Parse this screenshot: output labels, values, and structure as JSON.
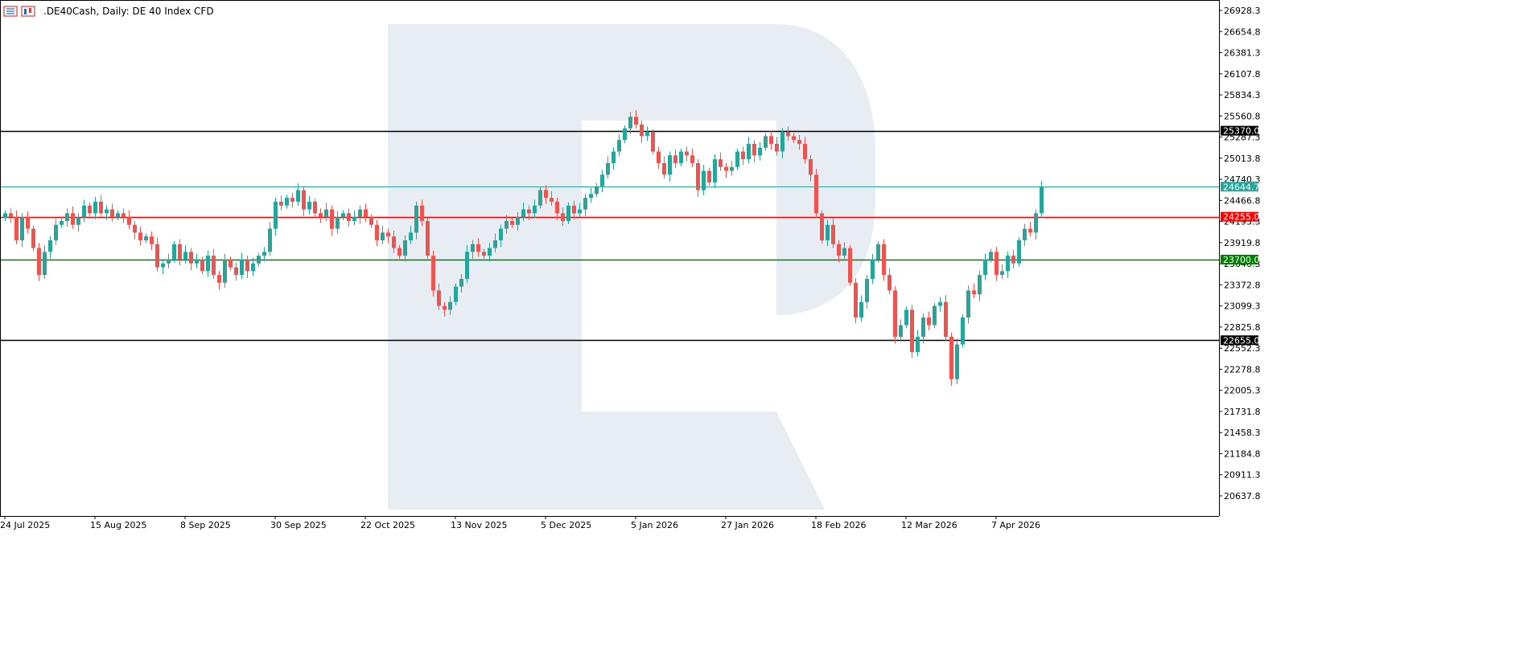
{
  "header": {
    "title": ".DE40Cash, Daily:  DE 40 Index CFD",
    "icons": [
      "indicator-list-icon",
      "chart-template-icon"
    ]
  },
  "watermark": {
    "icon": "brand-r-watermark-icon",
    "color": "#e8edf4"
  },
  "colors": {
    "bull": "#26a69a",
    "bear": "#ef5350",
    "resistance_line": "#000000",
    "key_level": "#ff0000",
    "support_level": "#008000",
    "price_line": "#26a69a",
    "axis": "#000000"
  },
  "chart_data": {
    "type": "candlestick",
    "title": ".DE40Cash, Daily:  DE 40 Index CFD",
    "ylim": [
      20500,
      27050
    ],
    "y_ticks": [
      "26928.3",
      "26654.8",
      "26381.3",
      "26107.8",
      "25834.3",
      "25560.8",
      "25287.3",
      "25013.8",
      "24740.3",
      "24466.8",
      "24193.3",
      "23919.8",
      "23646.3",
      "23372.8",
      "23099.3",
      "22825.8",
      "22552.3",
      "22278.8",
      "22005.3",
      "21731.8",
      "21458.3",
      "21184.8",
      "20911.3",
      "20637.8"
    ],
    "x_ticks": [
      {
        "label": "24 Jul 2025",
        "index": 0
      },
      {
        "label": "15 Aug 2025",
        "index": 16
      },
      {
        "label": "8 Sep 2025",
        "index": 32
      },
      {
        "label": "30 Sep 2025",
        "index": 48
      },
      {
        "label": "22 Oct 2025",
        "index": 64
      },
      {
        "label": "13 Nov 2025",
        "index": 80
      },
      {
        "label": "5 Dec 2025",
        "index": 96
      },
      {
        "label": "5 Jan 2026",
        "index": 112
      },
      {
        "label": "27 Jan 2026",
        "index": 128
      },
      {
        "label": "18 Feb 2026",
        "index": 144
      },
      {
        "label": "12 Mar 2026",
        "index": 160
      },
      {
        "label": "7 Apr 2026",
        "index": 176
      }
    ],
    "levels": [
      {
        "value": 25370.0,
        "label": "25370.0",
        "color": "#000000",
        "label_bg": "#000000",
        "label_fg": "#ffffff"
      },
      {
        "value": 24255.0,
        "label": "24255.0",
        "color": "#ff0000",
        "label_bg": "#ff0000",
        "label_fg": "#ffffff"
      },
      {
        "value": 23700.0,
        "label": "23700.0",
        "color": "#008000",
        "label_bg": "#008000",
        "label_fg": "#ffffff"
      },
      {
        "value": 22655.0,
        "label": "22655.0",
        "color": "#000000",
        "label_bg": "#000000",
        "label_fg": "#ffffff"
      },
      {
        "value": 24644.7,
        "label": "24644.7",
        "color": "#26a69a",
        "label_bg": "#26a69a",
        "label_fg": "#ffffff"
      }
    ],
    "closes": [
      24300,
      24250,
      23950,
      24250,
      24100,
      23850,
      23500,
      23800,
      23950,
      24150,
      24200,
      24300,
      24150,
      24250,
      24400,
      24300,
      24450,
      24300,
      24350,
      24250,
      24300,
      24250,
      24150,
      24050,
      23950,
      24000,
      23900,
      23600,
      23650,
      23700,
      23900,
      23700,
      23800,
      23650,
      23700,
      23550,
      23750,
      23500,
      23400,
      23700,
      23600,
      23500,
      23700,
      23550,
      23650,
      23750,
      23800,
      24100,
      24450,
      24400,
      24500,
      24450,
      24600,
      24350,
      24450,
      24300,
      24250,
      24350,
      24100,
      24250,
      24300,
      24200,
      24250,
      24350,
      24250,
      24150,
      23950,
      24050,
      24000,
      23850,
      23750,
      23950,
      24050,
      24400,
      24200,
      23750,
      23300,
      23100,
      23050,
      23150,
      23350,
      23450,
      23800,
      23900,
      23800,
      23750,
      23850,
      23950,
      24100,
      24200,
      24150,
      24250,
      24350,
      24300,
      24400,
      24600,
      24500,
      24450,
      24300,
      24200,
      24400,
      24300,
      24350,
      24500,
      24550,
      24650,
      24800,
      24950,
      25100,
      25250,
      25400,
      25550,
      25450,
      25300,
      25350,
      25100,
      24950,
      24800,
      25050,
      24950,
      25100,
      25050,
      24950,
      24600,
      24850,
      24700,
      25000,
      24900,
      24850,
      24900,
      25100,
      25000,
      25200,
      25050,
      25150,
      25300,
      25200,
      25100,
      25350,
      25300,
      25250,
      25200,
      25000,
      24800,
      24300,
      23950,
      24150,
      23900,
      23750,
      23850,
      23400,
      22950,
      23150,
      23450,
      23700,
      23900,
      23500,
      23300,
      22700,
      22850,
      23050,
      22500,
      22700,
      22950,
      22850,
      23100,
      23150,
      22700,
      22150,
      22600,
      22950,
      23300,
      23250,
      23500,
      23700,
      23800,
      23500,
      23550,
      23750,
      23650,
      23950,
      24100,
      24050,
      24300,
      24644.7
    ]
  },
  "axis_labels": {
    "right_labels": [
      "26928.3",
      "26654.8",
      "26381.3",
      "26107.8",
      "25834.3",
      "25560.8",
      "25287.3",
      "25013.8",
      "24740.3",
      "24466.8",
      "24193.3",
      "23919.8",
      "23646.3",
      "23372.8",
      "23099.3",
      "22825.8",
      "22552.3",
      "22278.8",
      "22005.3",
      "21731.8",
      "21458.3",
      "21184.8",
      "20911.3",
      "20637.8"
    ]
  }
}
